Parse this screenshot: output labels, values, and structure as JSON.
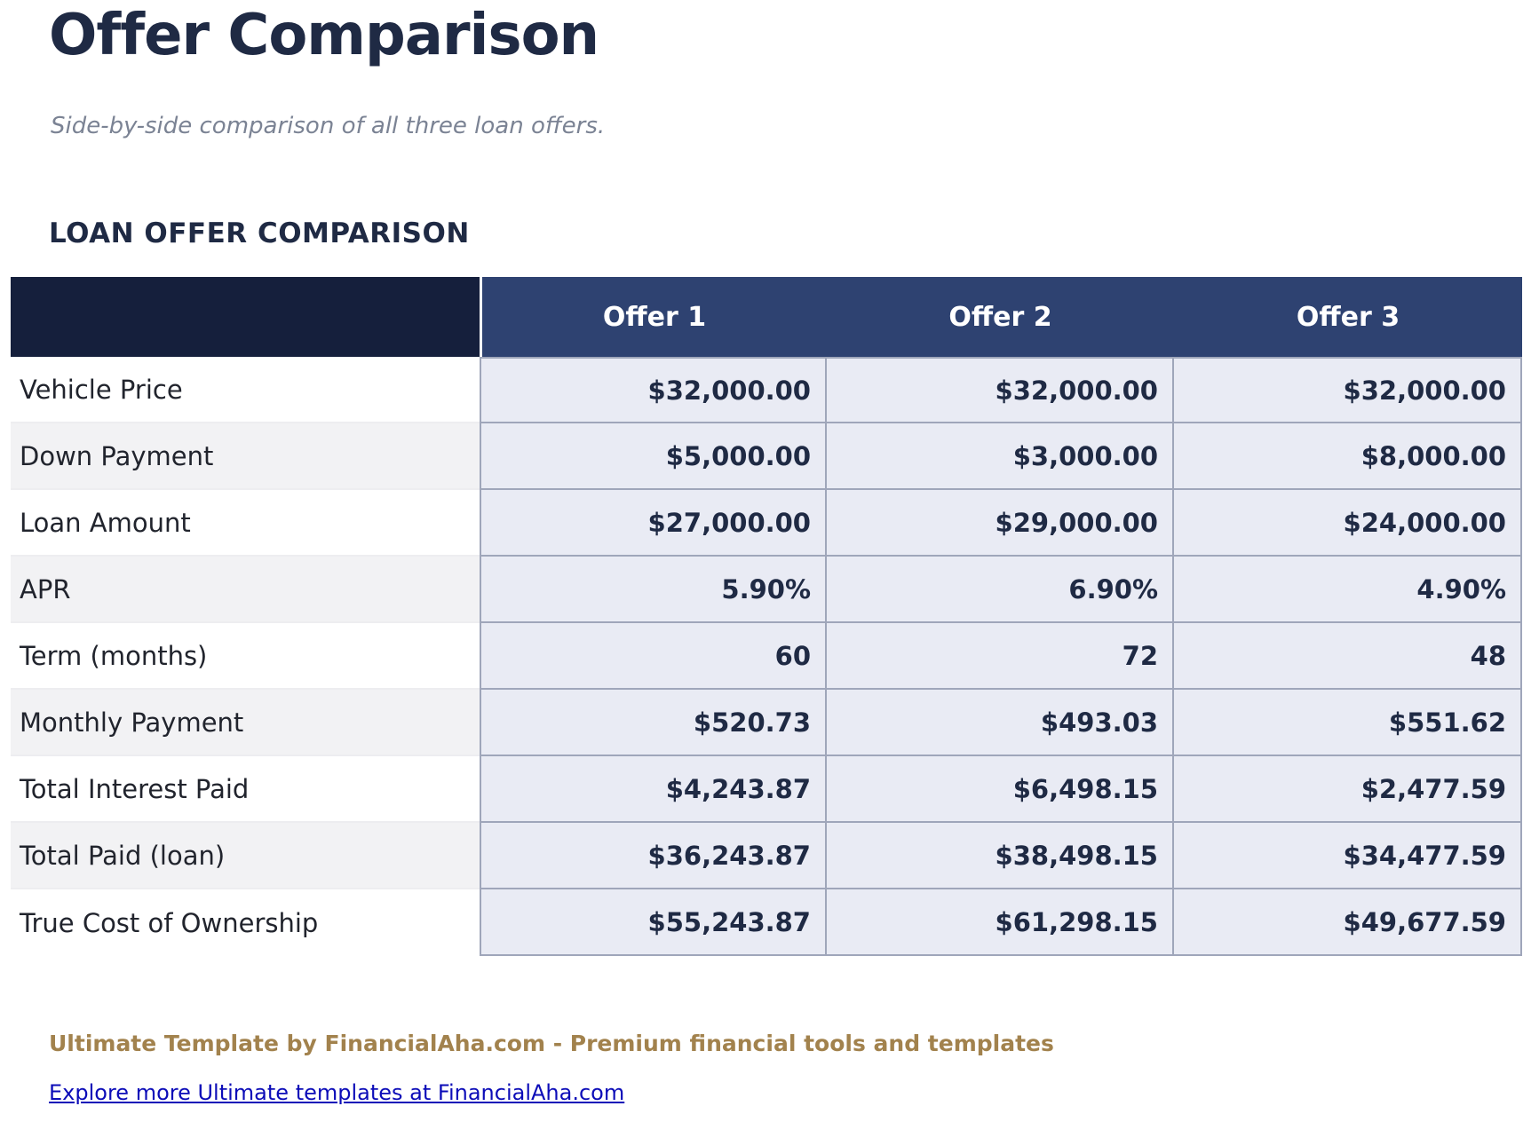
{
  "page": {
    "title": "Offer Comparison",
    "subtitle": "Side-by-side comparison of all three loan offers.",
    "section_heading": "LOAN OFFER COMPARISON"
  },
  "table": {
    "corner_label": "",
    "columns": [
      "Offer 1",
      "Offer 2",
      "Offer 3"
    ],
    "rows": [
      {
        "label": "Vehicle Price",
        "values": [
          "$32,000.00",
          "$32,000.00",
          "$32,000.00"
        ]
      },
      {
        "label": "Down Payment",
        "values": [
          "$5,000.00",
          "$3,000.00",
          "$8,000.00"
        ]
      },
      {
        "label": "Loan Amount",
        "values": [
          "$27,000.00",
          "$29,000.00",
          "$24,000.00"
        ]
      },
      {
        "label": "APR",
        "values": [
          "5.90%",
          "6.90%",
          "4.90%"
        ]
      },
      {
        "label": "Term (months)",
        "values": [
          "60",
          "72",
          "48"
        ]
      },
      {
        "label": "Monthly Payment",
        "values": [
          "$520.73",
          "$493.03",
          "$551.62"
        ]
      },
      {
        "label": "Total Interest Paid",
        "values": [
          "$4,243.87",
          "$6,498.15",
          "$2,477.59"
        ]
      },
      {
        "label": "Total Paid (loan)",
        "values": [
          "$36,243.87",
          "$38,498.15",
          "$34,477.59"
        ]
      },
      {
        "label": "True Cost of Ownership",
        "values": [
          "$55,243.87",
          "$61,298.15",
          "$49,677.59"
        ]
      }
    ]
  },
  "footer": {
    "brand_line": "Ultimate Template by FinancialAha.com - Premium financial tools and templates",
    "link_text": "Explore more Ultimate templates at FinancialAha.com"
  },
  "colors": {
    "title_navy": "#1f2a44",
    "corner_header_bg": "#151f3c",
    "offer_header_bg": "#2e4271",
    "value_cell_bg": "#e9ebf4",
    "value_cell_border": "#9fa6ba",
    "label_alt_row_bg": "#f2f2f4",
    "subtitle_gray": "#7b8394",
    "brand_gold": "#a2824d",
    "link_blue": "#0c0cb8"
  }
}
